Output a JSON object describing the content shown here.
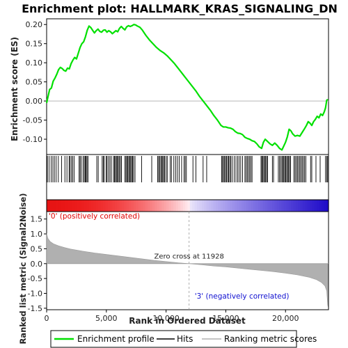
{
  "title": "Enrichment plot: HALLMARK_KRAS_SIGNALING_DN",
  "colors": {
    "profile": "#00e000",
    "hits": "#000000",
    "metric_fill": "#b0b0b0",
    "positive": "#e00000",
    "negative": "#1010d0",
    "zero_line": "#b8b8b8"
  },
  "chart_data": [
    {
      "type": "line",
      "name": "enrichment-profile",
      "ylabel": "Enrichment score (ES)",
      "xlim": [
        0,
        23600
      ],
      "ylim": [
        -0.14,
        0.215
      ],
      "yticks": [
        0.2,
        0.15,
        0.1,
        0.05,
        0.0,
        -0.05,
        -0.1
      ],
      "ytick_labels": [
        "0.20",
        "0.15",
        "0.10",
        "0.05",
        "0.00",
        "-0.05",
        "-0.10"
      ],
      "grid": false,
      "points": [
        [
          0,
          -0.005
        ],
        [
          120,
          0.012
        ],
        [
          250,
          0.03
        ],
        [
          400,
          0.034
        ],
        [
          550,
          0.052
        ],
        [
          700,
          0.06
        ],
        [
          850,
          0.07
        ],
        [
          1000,
          0.082
        ],
        [
          1150,
          0.088
        ],
        [
          1300,
          0.085
        ],
        [
          1450,
          0.08
        ],
        [
          1600,
          0.078
        ],
        [
          1750,
          0.086
        ],
        [
          1900,
          0.084
        ],
        [
          2050,
          0.098
        ],
        [
          2200,
          0.107
        ],
        [
          2350,
          0.114
        ],
        [
          2500,
          0.11
        ],
        [
          2650,
          0.125
        ],
        [
          2800,
          0.14
        ],
        [
          2950,
          0.15
        ],
        [
          3100,
          0.155
        ],
        [
          3250,
          0.168
        ],
        [
          3400,
          0.185
        ],
        [
          3550,
          0.196
        ],
        [
          3700,
          0.192
        ],
        [
          3850,
          0.185
        ],
        [
          4000,
          0.178
        ],
        [
          4150,
          0.184
        ],
        [
          4300,
          0.188
        ],
        [
          4450,
          0.182
        ],
        [
          4600,
          0.18
        ],
        [
          4750,
          0.185
        ],
        [
          4900,
          0.186
        ],
        [
          5050,
          0.18
        ],
        [
          5200,
          0.184
        ],
        [
          5350,
          0.181
        ],
        [
          5500,
          0.176
        ],
        [
          5650,
          0.18
        ],
        [
          5800,
          0.184
        ],
        [
          5950,
          0.181
        ],
        [
          6100,
          0.19
        ],
        [
          6250,
          0.195
        ],
        [
          6400,
          0.19
        ],
        [
          6550,
          0.186
        ],
        [
          6700,
          0.194
        ],
        [
          6850,
          0.197
        ],
        [
          7000,
          0.195
        ],
        [
          7150,
          0.197
        ],
        [
          7300,
          0.2
        ],
        [
          7450,
          0.199
        ],
        [
          7600,
          0.196
        ],
        [
          7800,
          0.193
        ],
        [
          8000,
          0.186
        ],
        [
          8300,
          0.172
        ],
        [
          8600,
          0.16
        ],
        [
          8900,
          0.15
        ],
        [
          9200,
          0.14
        ],
        [
          9500,
          0.132
        ],
        [
          9800,
          0.126
        ],
        [
          10100,
          0.118
        ],
        [
          10400,
          0.108
        ],
        [
          10700,
          0.098
        ],
        [
          11000,
          0.086
        ],
        [
          11300,
          0.074
        ],
        [
          11600,
          0.062
        ],
        [
          11900,
          0.05
        ],
        [
          12200,
          0.038
        ],
        [
          12500,
          0.026
        ],
        [
          12800,
          0.012
        ],
        [
          13100,
          0.0
        ],
        [
          13400,
          -0.012
        ],
        [
          13700,
          -0.024
        ],
        [
          14000,
          -0.038
        ],
        [
          14300,
          -0.05
        ],
        [
          14600,
          -0.064
        ],
        [
          14800,
          -0.068
        ],
        [
          15000,
          -0.068
        ],
        [
          15200,
          -0.07
        ],
        [
          15400,
          -0.071
        ],
        [
          15600,
          -0.074
        ],
        [
          15800,
          -0.08
        ],
        [
          16000,
          -0.084
        ],
        [
          16200,
          -0.085
        ],
        [
          16400,
          -0.088
        ],
        [
          16600,
          -0.095
        ],
        [
          16800,
          -0.098
        ],
        [
          17000,
          -0.1
        ],
        [
          17200,
          -0.104
        ],
        [
          17400,
          -0.106
        ],
        [
          17600,
          -0.112
        ],
        [
          17800,
          -0.12
        ],
        [
          18000,
          -0.124
        ],
        [
          18150,
          -0.108
        ],
        [
          18300,
          -0.1
        ],
        [
          18500,
          -0.106
        ],
        [
          18700,
          -0.112
        ],
        [
          18900,
          -0.116
        ],
        [
          19100,
          -0.11
        ],
        [
          19300,
          -0.116
        ],
        [
          19500,
          -0.124
        ],
        [
          19700,
          -0.128
        ],
        [
          19850,
          -0.118
        ],
        [
          20000,
          -0.108
        ],
        [
          20150,
          -0.094
        ],
        [
          20300,
          -0.074
        ],
        [
          20450,
          -0.078
        ],
        [
          20600,
          -0.086
        ],
        [
          20800,
          -0.092
        ],
        [
          21000,
          -0.09
        ],
        [
          21200,
          -0.092
        ],
        [
          21400,
          -0.082
        ],
        [
          21600,
          -0.072
        ],
        [
          21750,
          -0.064
        ],
        [
          21900,
          -0.054
        ],
        [
          22050,
          -0.058
        ],
        [
          22200,
          -0.064
        ],
        [
          22350,
          -0.054
        ],
        [
          22500,
          -0.048
        ],
        [
          22650,
          -0.04
        ],
        [
          22800,
          -0.044
        ],
        [
          22950,
          -0.034
        ],
        [
          23100,
          -0.038
        ],
        [
          23250,
          -0.028
        ],
        [
          23350,
          -0.018
        ],
        [
          23450,
          0.002
        ],
        [
          23540,
          0.004
        ]
      ]
    },
    {
      "type": "scatter",
      "name": "hits",
      "xlim": [
        0,
        23600
      ],
      "positions": [
        60,
        210,
        380,
        520,
        650,
        800,
        980,
        1250,
        1530,
        1700,
        1880,
        1960,
        2080,
        2180,
        2300,
        2720,
        2800,
        2900,
        3050,
        3150,
        3230,
        3300,
        3380,
        3460,
        4200,
        4320,
        4650,
        4740,
        4820,
        4980,
        5060,
        5180,
        5300,
        5420,
        5600,
        5680,
        5760,
        5840,
        5920,
        6000,
        6080,
        6180,
        6260,
        6560,
        6640,
        6720,
        6800,
        6880,
        6960,
        7040,
        7120,
        7200,
        7280,
        7400,
        7950,
        8800,
        9300,
        9380,
        9460,
        9560,
        9640,
        9720,
        9800,
        9880,
        10000,
        10100,
        10350,
        10450,
        10650,
        10800,
        10950,
        11100,
        11300,
        11500,
        11600,
        11700,
        12250,
        12500,
        13100,
        13400,
        14650,
        14730,
        14810,
        14900,
        14980,
        15060,
        15160,
        15240,
        15330,
        15420,
        15540,
        15700,
        15850,
        15990,
        16120,
        16250,
        16400,
        16600,
        16700,
        16800,
        16900,
        17000,
        17100,
        17200,
        17950,
        18020,
        18100,
        18180,
        18260,
        18340,
        18420,
        18500,
        18900,
        19000,
        19400,
        19500,
        19600,
        19700,
        19780,
        19860,
        19940,
        20020,
        20100,
        20180,
        20260,
        20340,
        20420,
        20700,
        20800,
        20900,
        21000,
        21100,
        21200,
        21300,
        21400,
        21500,
        21600,
        21700,
        22100,
        22200,
        22550,
        22900,
        23350,
        23450,
        23530
      ]
    },
    {
      "type": "area",
      "name": "ranked-list-metric",
      "ylabel": "Ranked list metric (Signal2Noise)",
      "xlabel": "Rank in Ordered Dataset",
      "xlim": [
        0,
        23600
      ],
      "ylim": [
        -1.55,
        1.75
      ],
      "xticks": [
        0,
        5000,
        10000,
        15000,
        20000
      ],
      "xtick_labels": [
        "0",
        "5,000",
        "10,000",
        "15,000",
        "20,000"
      ],
      "yticks": [
        1.5,
        1.0,
        0.5,
        0.0,
        -0.5,
        -1.0,
        -1.5
      ],
      "ytick_labels": [
        "1.5",
        "1.0",
        "0.5",
        "0.0",
        "-0.5",
        "-1.0",
        "-1.5"
      ],
      "zero_cross": 11928,
      "zero_cross_label": "Zero cross at 11928",
      "positive_label": "'0' (positively correlated)",
      "negative_label": "'3' (negatively correlated)",
      "points": [
        [
          0,
          1.02
        ],
        [
          100,
          0.85
        ],
        [
          300,
          0.74
        ],
        [
          600,
          0.66
        ],
        [
          1000,
          0.6
        ],
        [
          1500,
          0.54
        ],
        [
          2000,
          0.49
        ],
        [
          3000,
          0.42
        ],
        [
          4000,
          0.36
        ],
        [
          5000,
          0.31
        ],
        [
          6000,
          0.26
        ],
        [
          7000,
          0.21
        ],
        [
          8000,
          0.16
        ],
        [
          9000,
          0.11
        ],
        [
          10000,
          0.07
        ],
        [
          11000,
          0.03
        ],
        [
          11928,
          0.0
        ],
        [
          13000,
          -0.04
        ],
        [
          14000,
          -0.08
        ],
        [
          15000,
          -0.11
        ],
        [
          16000,
          -0.15
        ],
        [
          17000,
          -0.19
        ],
        [
          18000,
          -0.23
        ],
        [
          19000,
          -0.27
        ],
        [
          20000,
          -0.32
        ],
        [
          21000,
          -0.38
        ],
        [
          22000,
          -0.46
        ],
        [
          22600,
          -0.54
        ],
        [
          23000,
          -0.63
        ],
        [
          23300,
          -0.75
        ],
        [
          23450,
          -0.92
        ],
        [
          23530,
          -1.38
        ],
        [
          23560,
          -1.45
        ]
      ]
    }
  ],
  "legend": {
    "items": [
      {
        "label": "Enrichment profile",
        "kind": "line"
      },
      {
        "label": "Hits",
        "kind": "hit"
      },
      {
        "label": "Ranking metric scores",
        "kind": "metric"
      }
    ]
  }
}
